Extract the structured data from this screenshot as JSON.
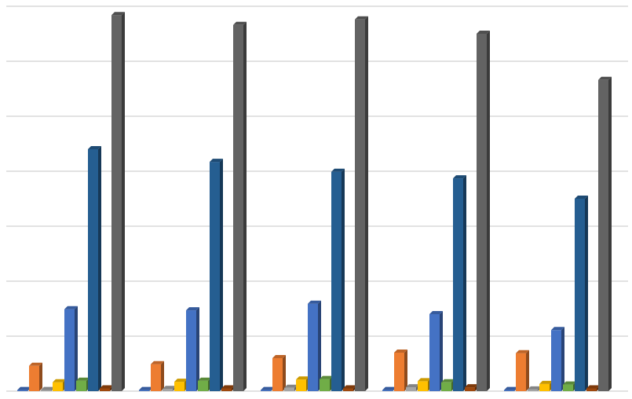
{
  "chart_data": {
    "type": "bar3d",
    "categories": [
      null,
      null,
      null,
      null,
      null
    ],
    "series": [
      {
        "color": "#4472c4",
        "values": [
          0.2,
          0.2,
          0.2,
          0.2,
          0.2
        ]
      },
      {
        "color": "#ed7d31",
        "values": [
          4.6,
          4.9,
          6,
          7,
          6.9
        ]
      },
      {
        "color": "#a5a5a5",
        "values": [
          0.2,
          0.4,
          0.6,
          0.7,
          0.3
        ]
      },
      {
        "color": "#ffc000",
        "values": [
          1.6,
          1.7,
          2.1,
          1.8,
          1.3
        ]
      },
      {
        "color": "#4472c4",
        "values": [
          14.9,
          14.7,
          15.9,
          14,
          11.1
        ]
      },
      {
        "color": "#70ad47",
        "values": [
          1.9,
          1.9,
          2.2,
          1.6,
          1.2
        ]
      },
      {
        "color": "#255e91",
        "values": [
          44,
          41.7,
          39.9,
          38.7,
          35
        ]
      },
      {
        "color": "#9e480e",
        "values": [
          0.5,
          0.5,
          0.5,
          0.7,
          0.5
        ]
      },
      {
        "color": "#636363",
        "values": [
          68.4,
          66.6,
          67.6,
          65,
          56.6
        ]
      }
    ],
    "ylim": [
      0,
      70
    ],
    "yticks": [
      0,
      10,
      20,
      30,
      40,
      50,
      60,
      70
    ],
    "grid": true
  }
}
